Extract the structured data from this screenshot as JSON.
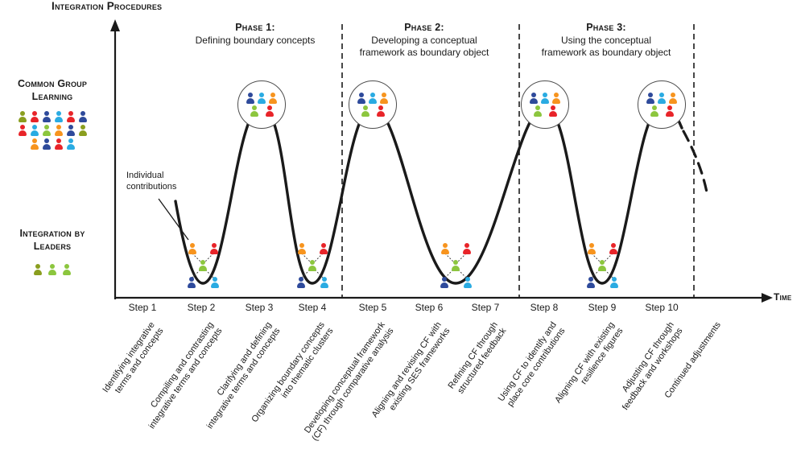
{
  "title": "Integration Procedures",
  "time_axis_label": "Time",
  "left_panel": {
    "common_group_learning": "Common Group\nLearning",
    "integration_by_leaders": "Integration by\nLeaders"
  },
  "annotation": "Individual\ncontributions",
  "phases": [
    {
      "label": "Phase 1:",
      "description": "Defining boundary concepts"
    },
    {
      "label": "Phase 2:",
      "description": "Developing a conceptual\nframework as boundary object"
    },
    {
      "label": "Phase 3:",
      "description": "Using the conceptual\nframework as boundary object"
    }
  ],
  "steps": [
    {
      "label": "Step 1",
      "description": "Identifying integrative\nterms and concepts"
    },
    {
      "label": "Step 2",
      "description": "Compiling and contrasting\nintegrative terms and concepts"
    },
    {
      "label": "Step 3",
      "description": "Clarifying and defining\nintegrative terms and concepts"
    },
    {
      "label": "Step 4",
      "description": "Organizing boundary concepts\ninto thematic clusters"
    },
    {
      "label": "Step 5",
      "description": "Developing conceptual framework\n(CF) through comparative analysis"
    },
    {
      "label": "Step 6",
      "description": "Aligning and revising CF with\nexisting SES frameworks"
    },
    {
      "label": "Step 7",
      "description": "Refining CF through\nstructured feedback"
    },
    {
      "label": "Step 8",
      "description": "Using CF to identify and\nplace core contributions"
    },
    {
      "label": "Step 9",
      "description": "Aligning CF with existing\nresilience figures"
    },
    {
      "label": "Step 10",
      "description": "Adjusting CF through\nfeedback and workshops"
    }
  ],
  "continued_label": "Continued adjustments",
  "curve": {
    "peaks_at_steps": [
      "Step 3",
      "Step 5",
      "Step 8",
      "Step 10"
    ],
    "valleys_at_steps": [
      "Step 2",
      "Step 4",
      "Step 6-7",
      "Step 9"
    ],
    "top_level_meaning": "Common group learning",
    "bottom_level_meaning": "Integration by leaders"
  },
  "colors": {
    "navy": "#2e4a9b",
    "cyan": "#2aabe2",
    "orange": "#f7941e",
    "red": "#e82429",
    "green": "#8cc63e",
    "olive": "#8a9e1f",
    "line": "#1a1a1a",
    "circle_stroke": "#4d4d4d"
  },
  "groups": {
    "crowd_rows": [
      [
        "olive",
        "red",
        "navy",
        "cyan",
        "red",
        "navy"
      ],
      [
        "red",
        "cyan",
        "green",
        "orange",
        "navy",
        "olive"
      ],
      [
        "orange",
        "navy",
        "red",
        "cyan"
      ]
    ],
    "leaders": [
      "olive",
      "green",
      "green"
    ],
    "circle_rows": [
      [
        "navy",
        "cyan",
        "orange"
      ],
      [
        "green",
        "red"
      ]
    ],
    "valley_rows": [
      [
        "orange",
        "red"
      ],
      [
        "green"
      ],
      [
        "navy",
        "cyan"
      ]
    ]
  }
}
